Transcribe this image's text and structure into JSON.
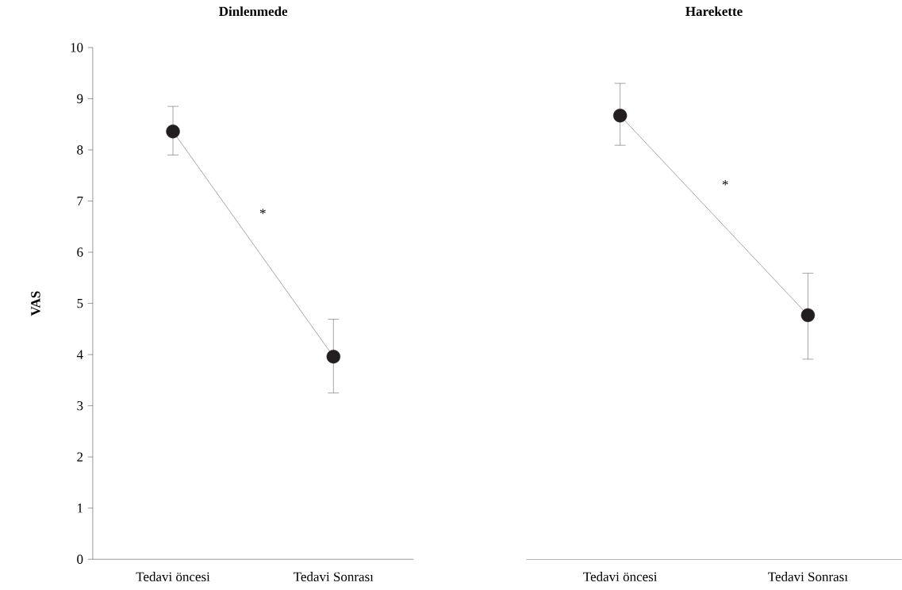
{
  "chart_data": [
    {
      "type": "line",
      "title": "Dinlenmede",
      "ylabel": "VAS",
      "categories": [
        "Tedavi öncesi",
        "Tedavi Sonrası"
      ],
      "values": [
        8.36,
        3.96
      ],
      "errors": [
        [
          7.9,
          8.85
        ],
        [
          3.25,
          4.69
        ]
      ],
      "color": "#231f20",
      "marker": "circle",
      "ylim": [
        0,
        10
      ],
      "yticks": [
        0,
        1,
        2,
        3,
        4,
        5,
        6,
        7,
        8,
        9,
        10
      ],
      "annotations": [
        "*"
      ]
    },
    {
      "type": "line",
      "title": "Harekette",
      "categories": [
        "Tedavi öncesi",
        "Tedavi Sonrası"
      ],
      "values": [
        8.67,
        4.77
      ],
      "errors": [
        [
          8.09,
          9.3
        ],
        [
          3.91,
          5.59
        ]
      ],
      "color": "#231f20",
      "marker": "circle",
      "ylim": [
        0,
        10
      ],
      "tick_labels": "x",
      "annotations": [
        "*"
      ]
    }
  ]
}
